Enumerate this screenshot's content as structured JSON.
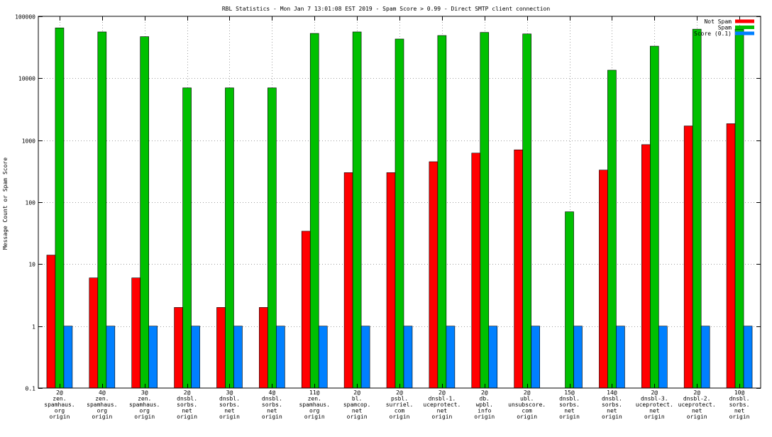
{
  "chart_data": {
    "type": "bar",
    "title": "RBL Statistics - Mon Jan  7 13:01:08 EST 2019 - Spam Score > 0.99 - Direct SMTP client connection",
    "ylabel": "Message Count or Spam Score",
    "xlabel": "",
    "yscale": "log",
    "ylim": [
      0.1,
      100000
    ],
    "yticks": [
      "0.1",
      "1",
      "10",
      "100",
      "1000",
      "10000",
      "100000"
    ],
    "grid": true,
    "legend_position": "top-right",
    "categories": [
      [
        "2@",
        "zen.",
        "spamhaus.",
        "org",
        "origin"
      ],
      [
        "4@",
        "zen.",
        "spamhaus.",
        "org",
        "origin"
      ],
      [
        "3@",
        "zen.",
        "spamhaus.",
        "org",
        "origin"
      ],
      [
        "2@",
        "dnsbl.",
        "sorbs.",
        "net",
        "origin"
      ],
      [
        "3@",
        "dnsbl.",
        "sorbs.",
        "net",
        "origin"
      ],
      [
        "4@",
        "dnsbl.",
        "sorbs.",
        "net",
        "origin"
      ],
      [
        "11@",
        "zen.",
        "spamhaus.",
        "org",
        "origin"
      ],
      [
        "2@",
        "bl.",
        "spamcop.",
        "net",
        "origin"
      ],
      [
        "2@",
        "psbl.",
        "surriel.",
        "com",
        "origin"
      ],
      [
        "2@",
        "dnsbl-1.",
        "uceprotect.",
        "net",
        "origin"
      ],
      [
        "2@",
        "db.",
        "wpbl.",
        "info",
        "origin"
      ],
      [
        "2@",
        "ubl.",
        "unsubscore.",
        "com",
        "origin"
      ],
      [
        "15@",
        "dnsbl.",
        "sorbs.",
        "net",
        "origin"
      ],
      [
        "14@",
        "dnsbl.",
        "sorbs.",
        "net",
        "origin"
      ],
      [
        "2@",
        "dnsbl-3.",
        "uceprotect.",
        "net",
        "origin"
      ],
      [
        "2@",
        "dnsbl-2.",
        "uceprotect.",
        "net",
        "origin"
      ],
      [
        "10@",
        "dnsbl.",
        "sorbs.",
        "net",
        "origin"
      ]
    ],
    "series": [
      {
        "name": "Not Spam",
        "color": "#ff0000",
        "values": [
          14,
          6,
          6,
          2,
          2,
          2,
          34,
          300,
          300,
          450,
          620,
          700,
          0,
          330,
          850,
          1700,
          1850
        ]
      },
      {
        "name": "Spam",
        "color": "#00c000",
        "values": [
          65000,
          56000,
          47000,
          7000,
          7000,
          7000,
          53000,
          56000,
          43000,
          49000,
          55000,
          52000,
          70,
          13500,
          33000,
          62000,
          62000
        ]
      },
      {
        "name": "Score (0.1)",
        "color": "#0080ff",
        "values": [
          1,
          1,
          1,
          1,
          1,
          1,
          1,
          1,
          1,
          1,
          1,
          1,
          1,
          1,
          1,
          1,
          1
        ]
      }
    ]
  }
}
